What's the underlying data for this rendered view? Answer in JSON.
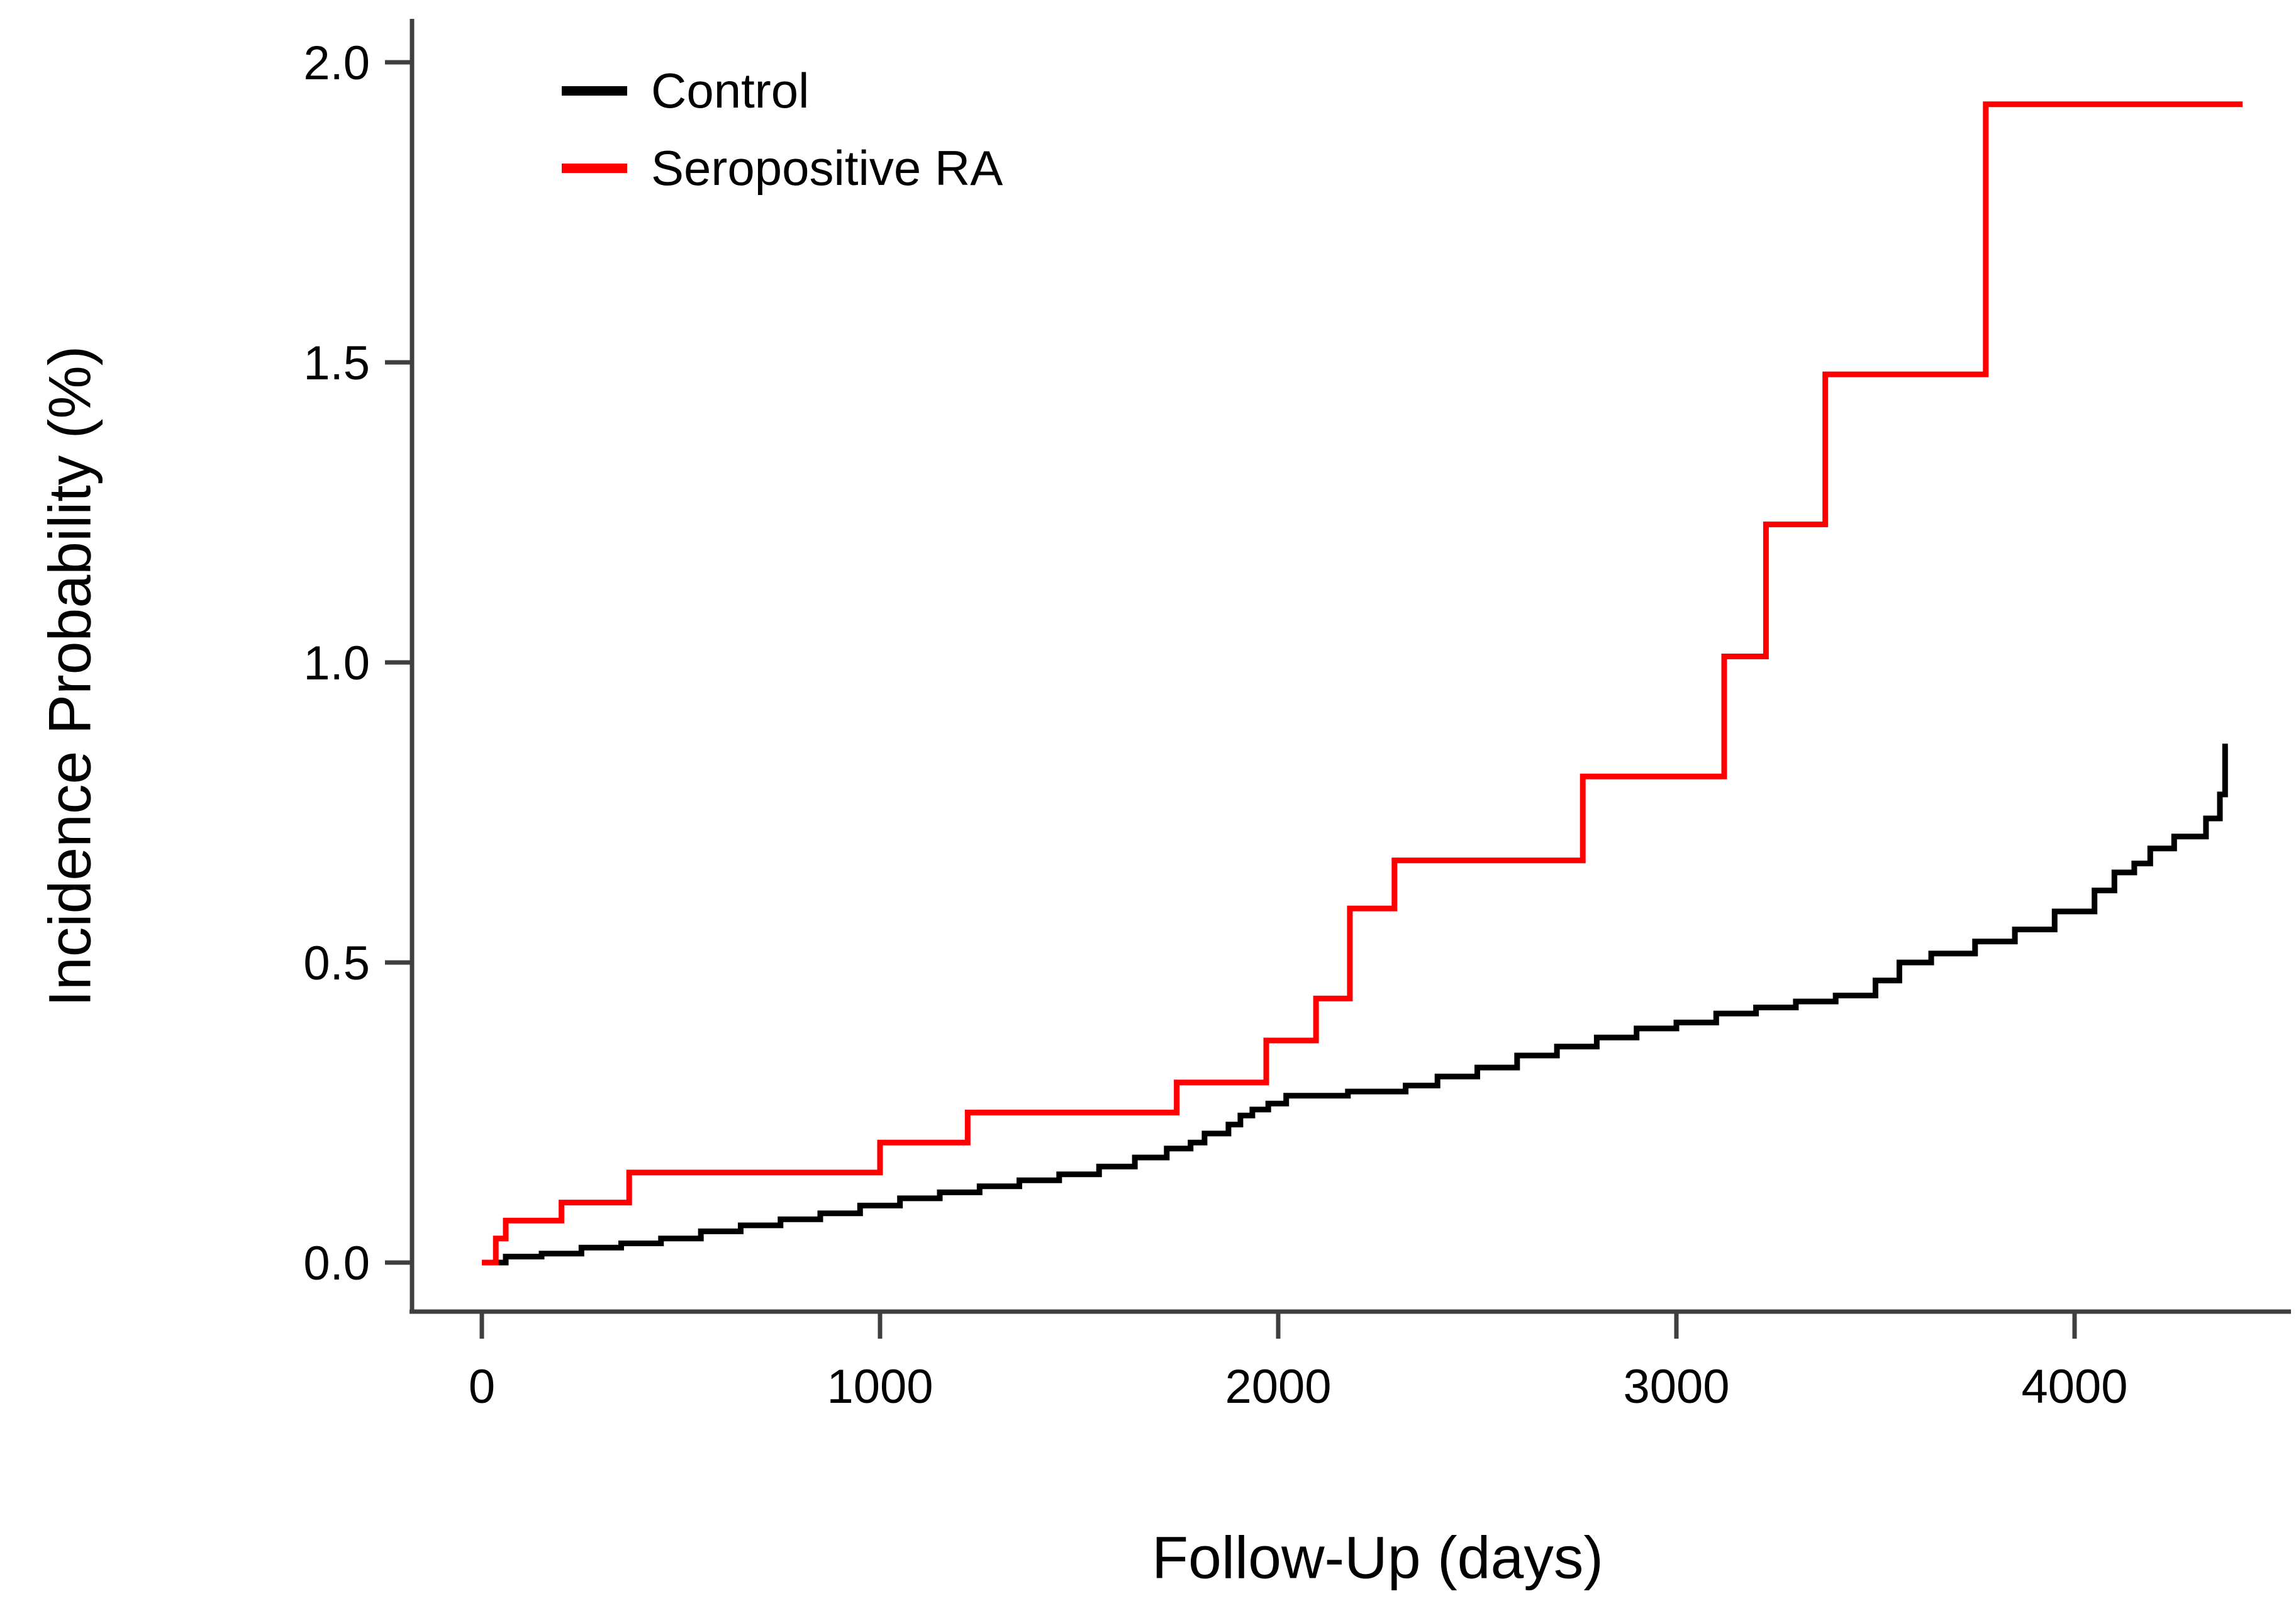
{
  "figure": {
    "background": "#ffffff",
    "axis_color": "#3f3f3f",
    "text_color": "#000000"
  },
  "legend": {
    "position": "top-left-inside",
    "items": [
      {
        "label": "Control",
        "color": "#000000"
      },
      {
        "label": "Seropositive RA",
        "color": "#ff0000"
      }
    ]
  },
  "chart_data": {
    "type": "line",
    "subtype": "step-after",
    "title": "",
    "xlabel": "Follow-Up (days)",
    "ylabel": "Incidence Probability (%)",
    "xlim": [
      0,
      4540
    ],
    "ylim": [
      0,
      2.05
    ],
    "grid": false,
    "x_ticks": [
      {
        "v": 0,
        "label": "0"
      },
      {
        "v": 1000,
        "label": "1000"
      },
      {
        "v": 2000,
        "label": "2000"
      },
      {
        "v": 3000,
        "label": "3000"
      },
      {
        "v": 4000,
        "label": "4000"
      }
    ],
    "y_ticks": [
      {
        "v": 0.0,
        "label": "0.0"
      },
      {
        "v": 0.5,
        "label": "0.5"
      },
      {
        "v": 1.0,
        "label": "1.0"
      },
      {
        "v": 1.5,
        "label": "1.5"
      },
      {
        "v": 2.0,
        "label": "2.0"
      }
    ],
    "series": [
      {
        "name": "Control",
        "color": "#000000",
        "points": [
          [
            0,
            0
          ],
          [
            60,
            0.01
          ],
          [
            150,
            0.015
          ],
          [
            250,
            0.025
          ],
          [
            350,
            0.032
          ],
          [
            450,
            0.04
          ],
          [
            550,
            0.052
          ],
          [
            650,
            0.062
          ],
          [
            750,
            0.072
          ],
          [
            850,
            0.082
          ],
          [
            950,
            0.095
          ],
          [
            1050,
            0.107
          ],
          [
            1150,
            0.117
          ],
          [
            1250,
            0.127
          ],
          [
            1350,
            0.137
          ],
          [
            1450,
            0.147
          ],
          [
            1550,
            0.16
          ],
          [
            1640,
            0.175
          ],
          [
            1720,
            0.19
          ],
          [
            1780,
            0.2
          ],
          [
            1815,
            0.215
          ],
          [
            1875,
            0.23
          ],
          [
            1905,
            0.245
          ],
          [
            1935,
            0.255
          ],
          [
            1975,
            0.265
          ],
          [
            2020,
            0.278
          ],
          [
            2175,
            0.285
          ],
          [
            2320,
            0.295
          ],
          [
            2400,
            0.31
          ],
          [
            2500,
            0.325
          ],
          [
            2600,
            0.345
          ],
          [
            2700,
            0.36
          ],
          [
            2800,
            0.375
          ],
          [
            2900,
            0.39
          ],
          [
            3000,
            0.4
          ],
          [
            3100,
            0.415
          ],
          [
            3200,
            0.425
          ],
          [
            3300,
            0.435
          ],
          [
            3400,
            0.445
          ],
          [
            3500,
            0.47
          ],
          [
            3560,
            0.5
          ],
          [
            3640,
            0.515
          ],
          [
            3750,
            0.535
          ],
          [
            3850,
            0.555
          ],
          [
            3950,
            0.585
          ],
          [
            4050,
            0.62
          ],
          [
            4100,
            0.65
          ],
          [
            4150,
            0.665
          ],
          [
            4190,
            0.69
          ],
          [
            4250,
            0.71
          ],
          [
            4330,
            0.74
          ],
          [
            4365,
            0.78
          ],
          [
            4378,
            0.86
          ],
          [
            4385,
            0.86
          ]
        ]
      },
      {
        "name": "Seropositive RA",
        "color": "#ff0000",
        "points": [
          [
            0,
            0
          ],
          [
            35,
            0.04
          ],
          [
            60,
            0.07
          ],
          [
            200,
            0.1
          ],
          [
            370,
            0.15
          ],
          [
            1000,
            0.2
          ],
          [
            1220,
            0.25
          ],
          [
            1745,
            0.3
          ],
          [
            1970,
            0.37
          ],
          [
            2095,
            0.44
          ],
          [
            2180,
            0.59
          ],
          [
            2292,
            0.67
          ],
          [
            2765,
            0.81
          ],
          [
            3120,
            1.01
          ],
          [
            3225,
            1.23
          ],
          [
            3374,
            1.48
          ],
          [
            3777,
            1.93
          ],
          [
            4422,
            1.93
          ]
        ]
      }
    ]
  }
}
